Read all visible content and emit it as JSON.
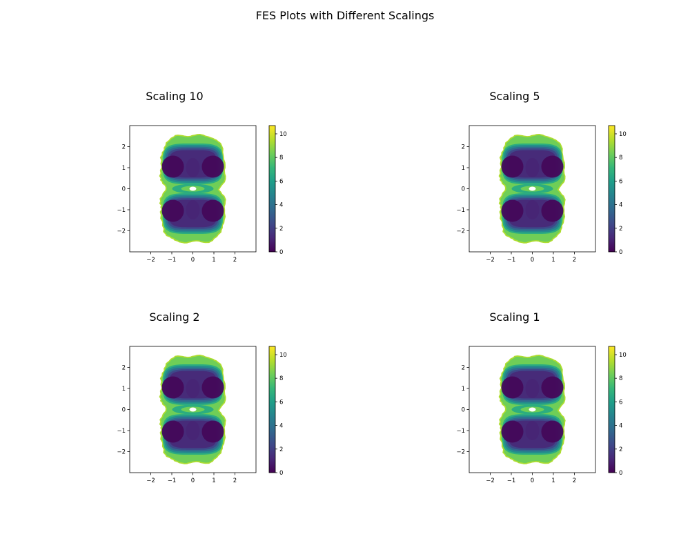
{
  "figure": {
    "title": "FES Plots with Different Scalings"
  },
  "colormap": [
    "#440154",
    "#482878",
    "#3e4989",
    "#31688e",
    "#26828e",
    "#1f9e89",
    "#35b779",
    "#6ece58",
    "#b5de2b",
    "#fde725"
  ],
  "chart_data": [
    {
      "type": "heatmap",
      "title": "Scaling 10",
      "xlim": [
        -3,
        3
      ],
      "ylim": [
        -3,
        3
      ],
      "xticks": [
        -2,
        -1,
        0,
        1,
        2
      ],
      "yticks": [
        -2,
        -1,
        0,
        1,
        2
      ],
      "xtick_labels": [
        "−2",
        "−1",
        "0",
        "1",
        "2"
      ],
      "ytick_labels": [
        "−2",
        "−1",
        "0",
        "1",
        "2"
      ],
      "colorbar": {
        "range": [
          0,
          10.7
        ],
        "ticks": [
          0,
          2,
          4,
          6,
          8,
          10
        ],
        "tick_labels": [
          "0",
          "2",
          "4",
          "6",
          "8",
          "10"
        ]
      },
      "grid": false
    },
    {
      "type": "heatmap",
      "title": "Scaling 5",
      "xlim": [
        -3,
        3
      ],
      "ylim": [
        -3,
        3
      ],
      "xticks": [
        -2,
        -1,
        0,
        1,
        2
      ],
      "yticks": [
        -2,
        -1,
        0,
        1,
        2
      ],
      "xtick_labels": [
        "−2",
        "−1",
        "0",
        "1",
        "2"
      ],
      "ytick_labels": [
        "−2",
        "−1",
        "0",
        "1",
        "2"
      ],
      "colorbar": {
        "range": [
          0,
          10.7
        ],
        "ticks": [
          0,
          2,
          4,
          6,
          8,
          10
        ],
        "tick_labels": [
          "0",
          "2",
          "4",
          "6",
          "8",
          "10"
        ]
      },
      "grid": false
    },
    {
      "type": "heatmap",
      "title": "Scaling 2",
      "xlim": [
        -3,
        3
      ],
      "ylim": [
        -3,
        3
      ],
      "xticks": [
        -2,
        -1,
        0,
        1,
        2
      ],
      "yticks": [
        -2,
        -1,
        0,
        1,
        2
      ],
      "xtick_labels": [
        "−2",
        "−1",
        "0",
        "1",
        "2"
      ],
      "ytick_labels": [
        "−2",
        "−1",
        "0",
        "1",
        "2"
      ],
      "colorbar": {
        "range": [
          0,
          10.7
        ],
        "ticks": [
          0,
          2,
          4,
          6,
          8,
          10
        ],
        "tick_labels": [
          "0",
          "2",
          "4",
          "6",
          "8",
          "10"
        ]
      },
      "grid": false
    },
    {
      "type": "heatmap",
      "title": "Scaling 1",
      "xlim": [
        -3,
        3
      ],
      "ylim": [
        -3,
        3
      ],
      "xticks": [
        -2,
        -1,
        0,
        1,
        2
      ],
      "yticks": [
        -2,
        -1,
        0,
        1,
        2
      ],
      "xtick_labels": [
        "−2",
        "−1",
        "0",
        "1",
        "2"
      ],
      "ytick_labels": [
        "−2",
        "−1",
        "0",
        "1",
        "2"
      ],
      "colorbar": {
        "range": [
          0,
          10.7
        ],
        "ticks": [
          0,
          2,
          4,
          6,
          8,
          10
        ],
        "tick_labels": [
          "0",
          "2",
          "4",
          "6",
          "8",
          "10"
        ]
      },
      "grid": false
    }
  ]
}
